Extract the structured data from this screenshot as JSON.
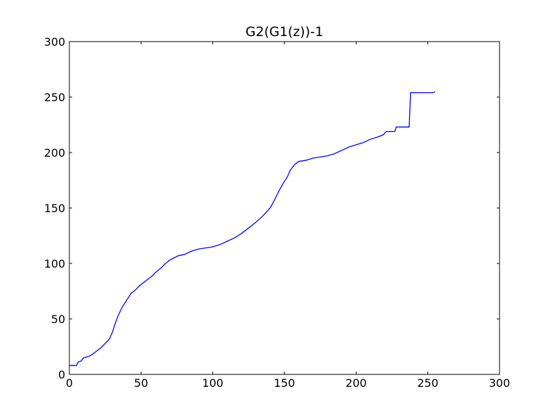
{
  "chart_data": {
    "type": "line",
    "title": "G2(G1(z))-1",
    "xlabel": "",
    "ylabel": "",
    "xlim": [
      0,
      300
    ],
    "ylim": [
      0,
      300
    ],
    "xticks": [
      0,
      50,
      100,
      150,
      200,
      250,
      300
    ],
    "yticks": [
      0,
      50,
      100,
      150,
      200,
      250,
      300
    ],
    "grid": false,
    "series": [
      {
        "color": "#0000ff",
        "points": [
          [
            0,
            8
          ],
          [
            5,
            8
          ],
          [
            6,
            11
          ],
          [
            8,
            12
          ],
          [
            10,
            15
          ],
          [
            13,
            16
          ],
          [
            16,
            18
          ],
          [
            19,
            21
          ],
          [
            22,
            24
          ],
          [
            25,
            28
          ],
          [
            28,
            32
          ],
          [
            30,
            38
          ],
          [
            32,
            46
          ],
          [
            34,
            53
          ],
          [
            37,
            61
          ],
          [
            40,
            67
          ],
          [
            43,
            73
          ],
          [
            46,
            76
          ],
          [
            49,
            80
          ],
          [
            52,
            83
          ],
          [
            55,
            86
          ],
          [
            58,
            89
          ],
          [
            61,
            93
          ],
          [
            64,
            96
          ],
          [
            67,
            100
          ],
          [
            70,
            103
          ],
          [
            73,
            105
          ],
          [
            76,
            107
          ],
          [
            80,
            108
          ],
          [
            85,
            111
          ],
          [
            90,
            113
          ],
          [
            95,
            114
          ],
          [
            100,
            115
          ],
          [
            105,
            117
          ],
          [
            110,
            120
          ],
          [
            115,
            123
          ],
          [
            120,
            127
          ],
          [
            125,
            132
          ],
          [
            130,
            137
          ],
          [
            135,
            143
          ],
          [
            140,
            150
          ],
          [
            143,
            157
          ],
          [
            146,
            165
          ],
          [
            149,
            172
          ],
          [
            152,
            178
          ],
          [
            154,
            184
          ],
          [
            157,
            189
          ],
          [
            160,
            192
          ],
          [
            165,
            193
          ],
          [
            170,
            195
          ],
          [
            175,
            196
          ],
          [
            180,
            197
          ],
          [
            185,
            199
          ],
          [
            190,
            202
          ],
          [
            195,
            205
          ],
          [
            200,
            207
          ],
          [
            205,
            209
          ],
          [
            210,
            212
          ],
          [
            215,
            214
          ],
          [
            219,
            216
          ],
          [
            221,
            219
          ],
          [
            227,
            219
          ],
          [
            228,
            223
          ],
          [
            237,
            223
          ],
          [
            238,
            254
          ],
          [
            254,
            254
          ],
          [
            255,
            255
          ]
        ]
      }
    ]
  }
}
